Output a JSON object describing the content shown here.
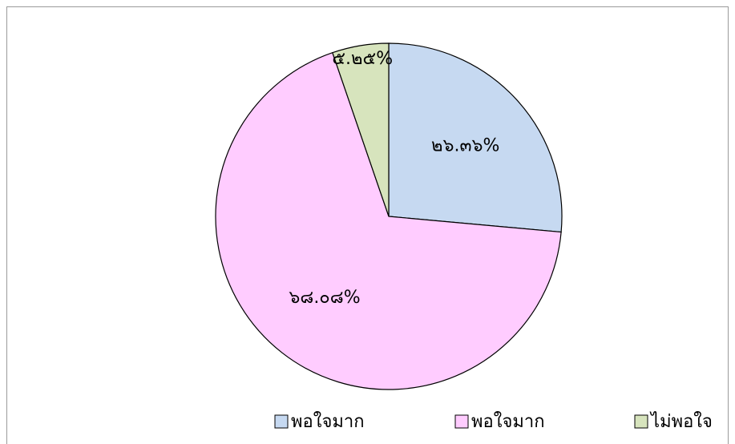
{
  "chart_data": {
    "type": "pie",
    "categories": [
      "พอใจมาก",
      "พอใจมาก",
      "ไม่พอใจ"
    ],
    "values": [
      26.36,
      68.08,
      5.25
    ],
    "value_labels": [
      "๒๖.๓๖%",
      "๖๘.๐๘%",
      "๕.๒๕%"
    ],
    "colors": [
      "#c6d9f1",
      "#ffccff",
      "#d7e4bd"
    ],
    "legend": "bottom"
  }
}
